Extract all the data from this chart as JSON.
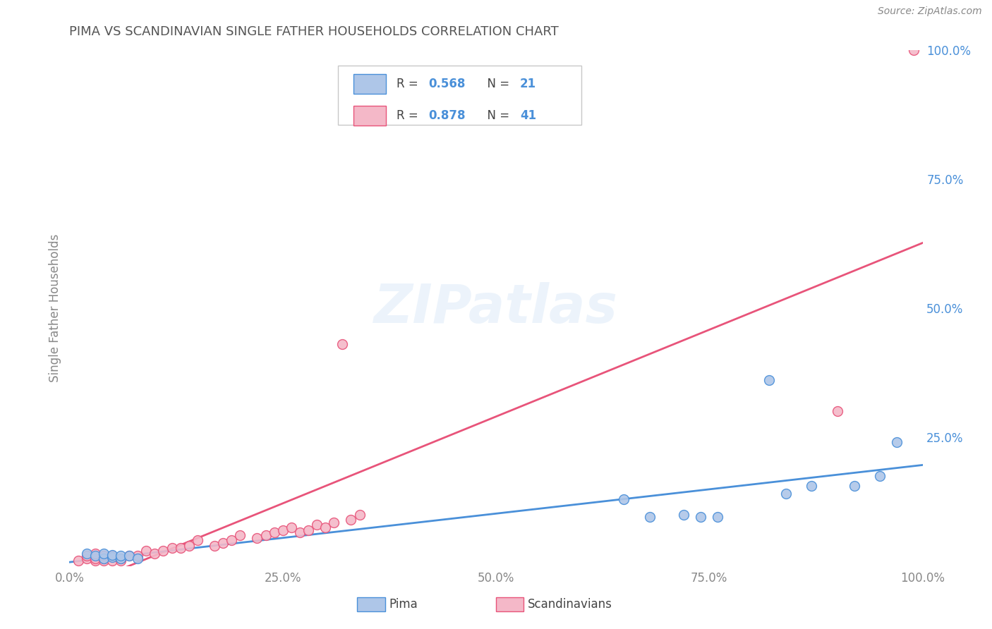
{
  "title": "PIMA VS SCANDINAVIAN SINGLE FATHER HOUSEHOLDS CORRELATION CHART",
  "source": "Source: ZipAtlas.com",
  "ylabel": "Single Father Households",
  "watermark": "ZIPatlas",
  "pima_color": "#aec6e8",
  "pima_line_color": "#4a90d9",
  "scand_color": "#f4b8c8",
  "scand_line_color": "#e8547a",
  "xlim": [
    0,
    1
  ],
  "ylim": [
    0,
    1
  ],
  "xtick_labels": [
    "0.0%",
    "25.0%",
    "50.0%",
    "75.0%",
    "100.0%"
  ],
  "xtick_vals": [
    0,
    0.25,
    0.5,
    0.75,
    1.0
  ],
  "ytick_labels_right": [
    "100.0%",
    "75.0%",
    "50.0%",
    "25.0%"
  ],
  "ytick_vals_right": [
    1.0,
    0.75,
    0.5,
    0.25
  ],
  "pima_x": [
    0.02,
    0.03,
    0.04,
    0.04,
    0.05,
    0.05,
    0.06,
    0.06,
    0.07,
    0.08,
    0.65,
    0.68,
    0.72,
    0.74,
    0.76,
    0.82,
    0.84,
    0.87,
    0.92,
    0.95,
    0.97
  ],
  "pima_y": [
    0.025,
    0.02,
    0.015,
    0.025,
    0.018,
    0.022,
    0.015,
    0.02,
    0.02,
    0.015,
    0.13,
    0.095,
    0.1,
    0.095,
    0.095,
    0.36,
    0.14,
    0.155,
    0.155,
    0.175,
    0.24
  ],
  "scand_x": [
    0.01,
    0.02,
    0.02,
    0.03,
    0.03,
    0.03,
    0.04,
    0.04,
    0.04,
    0.05,
    0.05,
    0.06,
    0.06,
    0.07,
    0.08,
    0.09,
    0.1,
    0.11,
    0.12,
    0.13,
    0.14,
    0.15,
    0.17,
    0.18,
    0.19,
    0.2,
    0.22,
    0.23,
    0.24,
    0.25,
    0.26,
    0.27,
    0.28,
    0.29,
    0.3,
    0.31,
    0.32,
    0.33,
    0.34,
    0.9,
    0.99
  ],
  "scand_y": [
    0.01,
    0.015,
    0.02,
    0.01,
    0.015,
    0.025,
    0.01,
    0.015,
    0.02,
    0.01,
    0.02,
    0.01,
    0.015,
    0.02,
    0.02,
    0.03,
    0.025,
    0.03,
    0.035,
    0.035,
    0.04,
    0.05,
    0.04,
    0.045,
    0.05,
    0.06,
    0.055,
    0.06,
    0.065,
    0.07,
    0.075,
    0.065,
    0.07,
    0.08,
    0.075,
    0.085,
    0.43,
    0.09,
    0.1,
    0.3,
    1.0
  ],
  "background_color": "#ffffff",
  "grid_color": "#cccccc",
  "title_color": "#555555",
  "axis_label_color": "#888888",
  "tick_color_right": "#4a90d9",
  "legend_r1": "0.568",
  "legend_n1": "21",
  "legend_r2": "0.878",
  "legend_n2": "41"
}
